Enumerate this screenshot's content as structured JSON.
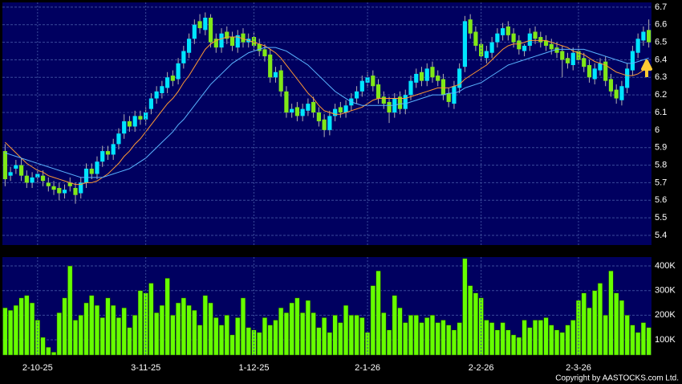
{
  "chart_data": [
    {
      "type": "candlestick",
      "open": [
        5.88,
        5.74,
        5.78,
        5.8,
        5.74,
        5.7,
        5.73,
        5.74,
        5.7,
        5.68,
        5.67,
        5.64,
        5.7,
        5.67,
        5.64,
        5.7,
        5.78,
        5.75,
        5.82,
        5.88,
        5.86,
        5.92,
        5.98,
        6.05,
        6.02,
        6.08,
        6.06,
        6.12,
        6.18,
        6.21,
        6.24,
        6.31,
        6.29,
        6.38,
        6.44,
        6.52,
        6.62,
        6.57,
        6.64,
        6.52,
        6.47,
        6.56,
        6.53,
        6.47,
        6.55,
        6.5,
        6.53,
        6.49,
        6.46,
        6.43,
        6.3,
        6.34,
        6.22,
        6.1,
        6.13,
        6.08,
        6.11,
        6.16,
        6.1,
        6.06,
        6.0,
        6.08,
        6.13,
        6.1,
        6.14,
        6.18,
        6.22,
        6.27,
        6.31,
        6.26,
        6.19,
        6.16,
        6.1,
        6.19,
        6.12,
        6.2,
        6.27,
        6.33,
        6.28,
        6.36,
        6.31,
        6.29,
        6.21,
        6.15,
        6.24,
        6.36,
        6.63,
        6.56,
        6.49,
        6.41,
        6.44,
        6.5,
        6.54,
        6.59,
        6.55,
        6.51,
        6.45,
        6.48,
        6.56,
        6.53,
        6.51,
        6.49,
        6.47,
        6.45,
        6.41,
        6.37,
        6.45,
        6.41,
        6.37,
        6.29,
        6.34,
        6.39,
        6.29,
        6.23,
        6.17,
        6.24,
        6.34,
        6.44,
        6.51,
        6.57
      ],
      "high": [
        5.92,
        5.79,
        5.83,
        5.84,
        5.77,
        5.76,
        5.78,
        5.77,
        5.73,
        5.71,
        5.7,
        5.69,
        5.73,
        5.7,
        5.73,
        5.81,
        5.81,
        5.85,
        5.91,
        5.91,
        5.95,
        6.01,
        6.09,
        6.08,
        6.11,
        6.11,
        6.13,
        6.21,
        6.25,
        6.28,
        6.33,
        6.34,
        6.41,
        6.48,
        6.55,
        6.63,
        6.66,
        6.67,
        6.66,
        6.55,
        6.58,
        6.59,
        6.56,
        6.57,
        6.58,
        6.55,
        6.56,
        6.52,
        6.49,
        6.46,
        6.36,
        6.37,
        6.25,
        6.15,
        6.16,
        6.15,
        6.18,
        6.19,
        6.13,
        6.09,
        6.11,
        6.15,
        6.16,
        6.17,
        6.21,
        6.25,
        6.31,
        6.33,
        6.34,
        6.29,
        6.22,
        6.19,
        6.21,
        6.22,
        6.23,
        6.31,
        6.35,
        6.36,
        6.38,
        6.39,
        6.34,
        6.32,
        6.24,
        6.28,
        6.38,
        6.65,
        6.66,
        6.59,
        6.52,
        6.48,
        6.53,
        6.58,
        6.61,
        6.62,
        6.58,
        6.54,
        6.49,
        6.58,
        6.59,
        6.56,
        6.54,
        6.52,
        6.5,
        6.48,
        6.44,
        6.47,
        6.48,
        6.44,
        6.4,
        6.38,
        6.41,
        6.42,
        6.32,
        6.26,
        6.28,
        6.38,
        6.48,
        6.55,
        6.59,
        6.63
      ],
      "low": [
        5.68,
        5.71,
        5.75,
        5.71,
        5.67,
        5.67,
        5.7,
        5.68,
        5.65,
        5.63,
        5.6,
        5.61,
        5.65,
        5.58,
        5.61,
        5.67,
        5.72,
        5.72,
        5.79,
        5.83,
        5.83,
        5.89,
        5.95,
        5.99,
        5.99,
        6.03,
        6.03,
        6.09,
        6.15,
        6.18,
        6.21,
        6.25,
        6.26,
        6.35,
        6.41,
        6.49,
        6.55,
        6.54,
        6.47,
        6.44,
        6.44,
        6.49,
        6.45,
        6.44,
        6.47,
        6.47,
        6.45,
        6.42,
        6.39,
        6.27,
        6.27,
        6.19,
        6.07,
        6.07,
        6.05,
        6.05,
        6.08,
        6.07,
        6.02,
        5.96,
        5.97,
        6.05,
        6.07,
        6.07,
        6.11,
        6.15,
        6.19,
        6.24,
        6.22,
        6.15,
        6.12,
        6.04,
        6.07,
        6.09,
        6.09,
        6.17,
        6.24,
        6.25,
        6.25,
        6.27,
        6.25,
        6.17,
        6.13,
        6.12,
        6.21,
        6.33,
        6.52,
        6.45,
        6.39,
        6.38,
        6.41,
        6.47,
        6.51,
        6.51,
        6.47,
        6.43,
        6.42,
        6.45,
        6.49,
        6.47,
        6.45,
        6.43,
        6.41,
        6.3,
        6.35,
        6.34,
        6.37,
        6.33,
        6.27,
        6.26,
        6.31,
        6.25,
        6.19,
        6.15,
        6.14,
        6.21,
        6.31,
        6.41,
        6.48,
        6.47
      ],
      "close": [
        5.72,
        5.76,
        5.8,
        5.74,
        5.7,
        5.73,
        5.75,
        5.71,
        5.68,
        5.66,
        5.64,
        5.66,
        5.68,
        5.63,
        5.7,
        5.78,
        5.75,
        5.82,
        5.88,
        5.86,
        5.92,
        5.98,
        6.05,
        6.02,
        6.08,
        6.06,
        6.1,
        6.18,
        6.22,
        6.25,
        6.3,
        6.28,
        6.38,
        6.45,
        6.52,
        6.6,
        6.58,
        6.64,
        6.5,
        6.47,
        6.55,
        6.52,
        6.48,
        6.54,
        6.5,
        6.52,
        6.48,
        6.45,
        6.42,
        6.3,
        6.33,
        6.22,
        6.1,
        6.12,
        6.08,
        6.12,
        6.15,
        6.1,
        6.05,
        6.0,
        6.08,
        6.12,
        6.1,
        6.14,
        6.18,
        6.22,
        6.28,
        6.3,
        6.25,
        6.18,
        6.15,
        6.1,
        6.18,
        6.12,
        6.2,
        6.28,
        6.32,
        6.28,
        6.35,
        6.3,
        6.28,
        6.2,
        6.16,
        6.25,
        6.35,
        6.62,
        6.55,
        6.48,
        6.42,
        6.45,
        6.5,
        6.55,
        6.58,
        6.54,
        6.5,
        6.46,
        6.48,
        6.55,
        6.52,
        6.5,
        6.48,
        6.46,
        6.44,
        6.4,
        6.38,
        6.44,
        6.4,
        6.36,
        6.3,
        6.35,
        6.38,
        6.28,
        6.22,
        6.18,
        6.25,
        6.35,
        6.45,
        6.52,
        6.56,
        6.5
      ],
      "up_color": "#00e5ff",
      "down_color": "#80e818",
      "series": [
        {
          "color": "#ff9933",
          "values": [
            5.93,
            5.9,
            5.87,
            5.84,
            5.81,
            5.79,
            5.77,
            5.76,
            5.74,
            5.73,
            5.72,
            5.71,
            5.7,
            5.69,
            5.69,
            5.7,
            5.7,
            5.71,
            5.73,
            5.75,
            5.78,
            5.81,
            5.85,
            5.88,
            5.92,
            5.95,
            5.99,
            6.03,
            6.07,
            6.11,
            6.15,
            6.18,
            6.22,
            6.27,
            6.31,
            6.36,
            6.41,
            6.46,
            6.49,
            6.51,
            6.52,
            6.53,
            6.53,
            6.53,
            6.52,
            6.51,
            6.5,
            6.49,
            6.48,
            6.46,
            6.44,
            6.41,
            6.37,
            6.33,
            6.29,
            6.25,
            6.21,
            6.18,
            6.14,
            6.11,
            6.1,
            6.09,
            6.09,
            6.1,
            6.11,
            6.12,
            6.13,
            6.15,
            6.17,
            6.18,
            6.18,
            6.18,
            6.18,
            6.18,
            6.18,
            6.19,
            6.2,
            6.21,
            6.22,
            6.23,
            6.24,
            6.24,
            6.24,
            6.25,
            6.26,
            6.29,
            6.31,
            6.33,
            6.35,
            6.37,
            6.4,
            6.43,
            6.46,
            6.48,
            6.49,
            6.49,
            6.5,
            6.51,
            6.51,
            6.51,
            6.51,
            6.5,
            6.49,
            6.48,
            6.47,
            6.45,
            6.44,
            6.43,
            6.41,
            6.39,
            6.38,
            6.37,
            6.35,
            6.33,
            6.32,
            6.31,
            6.31,
            6.32,
            6.34,
            6.36
          ]
        },
        {
          "color": "#5ab4ff",
          "values": [
            5.87,
            5.86,
            5.85,
            5.84,
            5.83,
            5.82,
            5.81,
            5.8,
            5.79,
            5.78,
            5.77,
            5.76,
            5.75,
            5.74,
            5.73,
            5.73,
            5.73,
            5.73,
            5.73,
            5.74,
            5.75,
            5.76,
            5.77,
            5.78,
            5.8,
            5.82,
            5.84,
            5.87,
            5.9,
            5.93,
            5.96,
            5.99,
            6.03,
            6.06,
            6.1,
            6.14,
            6.18,
            6.22,
            6.26,
            6.29,
            6.32,
            6.35,
            6.38,
            6.4,
            6.42,
            6.44,
            6.45,
            6.46,
            6.47,
            6.47,
            6.47,
            6.46,
            6.45,
            6.43,
            6.41,
            6.39,
            6.37,
            6.34,
            6.31,
            6.28,
            6.25,
            6.22,
            6.2,
            6.18,
            6.16,
            6.15,
            6.14,
            6.14,
            6.14,
            6.14,
            6.14,
            6.14,
            6.14,
            6.15,
            6.15,
            6.16,
            6.17,
            6.18,
            6.19,
            6.2,
            6.2,
            6.2,
            6.21,
            6.21,
            6.22,
            6.24,
            6.25,
            6.26,
            6.27,
            6.29,
            6.31,
            6.33,
            6.35,
            6.37,
            6.38,
            6.39,
            6.4,
            6.41,
            6.42,
            6.43,
            6.44,
            6.45,
            6.46,
            6.46,
            6.46,
            6.46,
            6.46,
            6.46,
            6.45,
            6.44,
            6.43,
            6.42,
            6.41,
            6.4,
            6.39,
            6.38,
            6.38,
            6.39,
            6.4,
            6.41
          ]
        }
      ],
      "ylim": [
        5.345,
        6.727
      ],
      "yticks": [
        5.4,
        5.5,
        5.6,
        5.7,
        5.8,
        5.9,
        6,
        6.1,
        6.2,
        6.3,
        6.4,
        6.5,
        6.6,
        6.7
      ],
      "grid": true
    },
    {
      "type": "bar",
      "categories": [
        null,
        null,
        null,
        null,
        null,
        null,
        "2-10-25",
        null,
        null,
        null,
        null,
        null,
        null,
        null,
        null,
        null,
        null,
        null,
        null,
        null,
        null,
        null,
        null,
        null,
        null,
        null,
        "3-11-25",
        null,
        null,
        null,
        null,
        null,
        null,
        null,
        null,
        null,
        null,
        null,
        null,
        null,
        null,
        null,
        null,
        null,
        null,
        null,
        "1-12-25",
        null,
        null,
        null,
        null,
        null,
        null,
        null,
        null,
        null,
        null,
        null,
        null,
        null,
        null,
        null,
        null,
        null,
        null,
        null,
        null,
        "2-1-26",
        null,
        null,
        null,
        null,
        null,
        null,
        null,
        null,
        null,
        null,
        null,
        null,
        null,
        null,
        null,
        null,
        null,
        null,
        null,
        null,
        "2-2-26",
        null,
        null,
        null,
        null,
        null,
        null,
        null,
        null,
        null,
        null,
        null,
        null,
        null,
        null,
        null,
        null,
        null,
        "2-3-26",
        null,
        null,
        null,
        null,
        null,
        null,
        null,
        null,
        null,
        null,
        null,
        null,
        null
      ],
      "values": [
        230000,
        220000,
        240000,
        270000,
        280000,
        250000,
        180000,
        110000,
        70000,
        50000,
        210000,
        270000,
        400000,
        180000,
        200000,
        250000,
        280000,
        240000,
        190000,
        270000,
        240000,
        190000,
        230000,
        150000,
        200000,
        300000,
        290000,
        330000,
        210000,
        240000,
        350000,
        200000,
        250000,
        270000,
        240000,
        220000,
        160000,
        280000,
        250000,
        190000,
        160000,
        200000,
        120000,
        190000,
        270000,
        150000,
        140000,
        130000,
        190000,
        160000,
        180000,
        230000,
        210000,
        250000,
        270000,
        210000,
        260000,
        210000,
        150000,
        190000,
        130000,
        200000,
        170000,
        240000,
        200000,
        200000,
        190000,
        130000,
        320000,
        380000,
        210000,
        140000,
        280000,
        230000,
        170000,
        200000,
        200000,
        170000,
        190000,
        200000,
        170000,
        180000,
        160000,
        140000,
        170000,
        430000,
        320000,
        290000,
        270000,
        180000,
        170000,
        140000,
        170000,
        140000,
        120000,
        110000,
        180000,
        150000,
        180000,
        180000,
        190000,
        160000,
        140000,
        130000,
        160000,
        180000,
        260000,
        290000,
        230000,
        300000,
        330000,
        200000,
        380000,
        290000,
        260000,
        200000,
        160000,
        130000,
        170000,
        150000
      ],
      "color": "#66ff00",
      "ylim": [
        38000,
        436000
      ],
      "yticks": [
        {
          "value": 100000,
          "label": "100K"
        },
        {
          "value": 200000,
          "label": "200K"
        },
        {
          "value": 300000,
          "label": "300K"
        },
        {
          "value": 400000,
          "label": "400K"
        }
      ],
      "grid": true,
      "copyright": "Copyright by AASTOCKS.com Ltd."
    }
  ]
}
